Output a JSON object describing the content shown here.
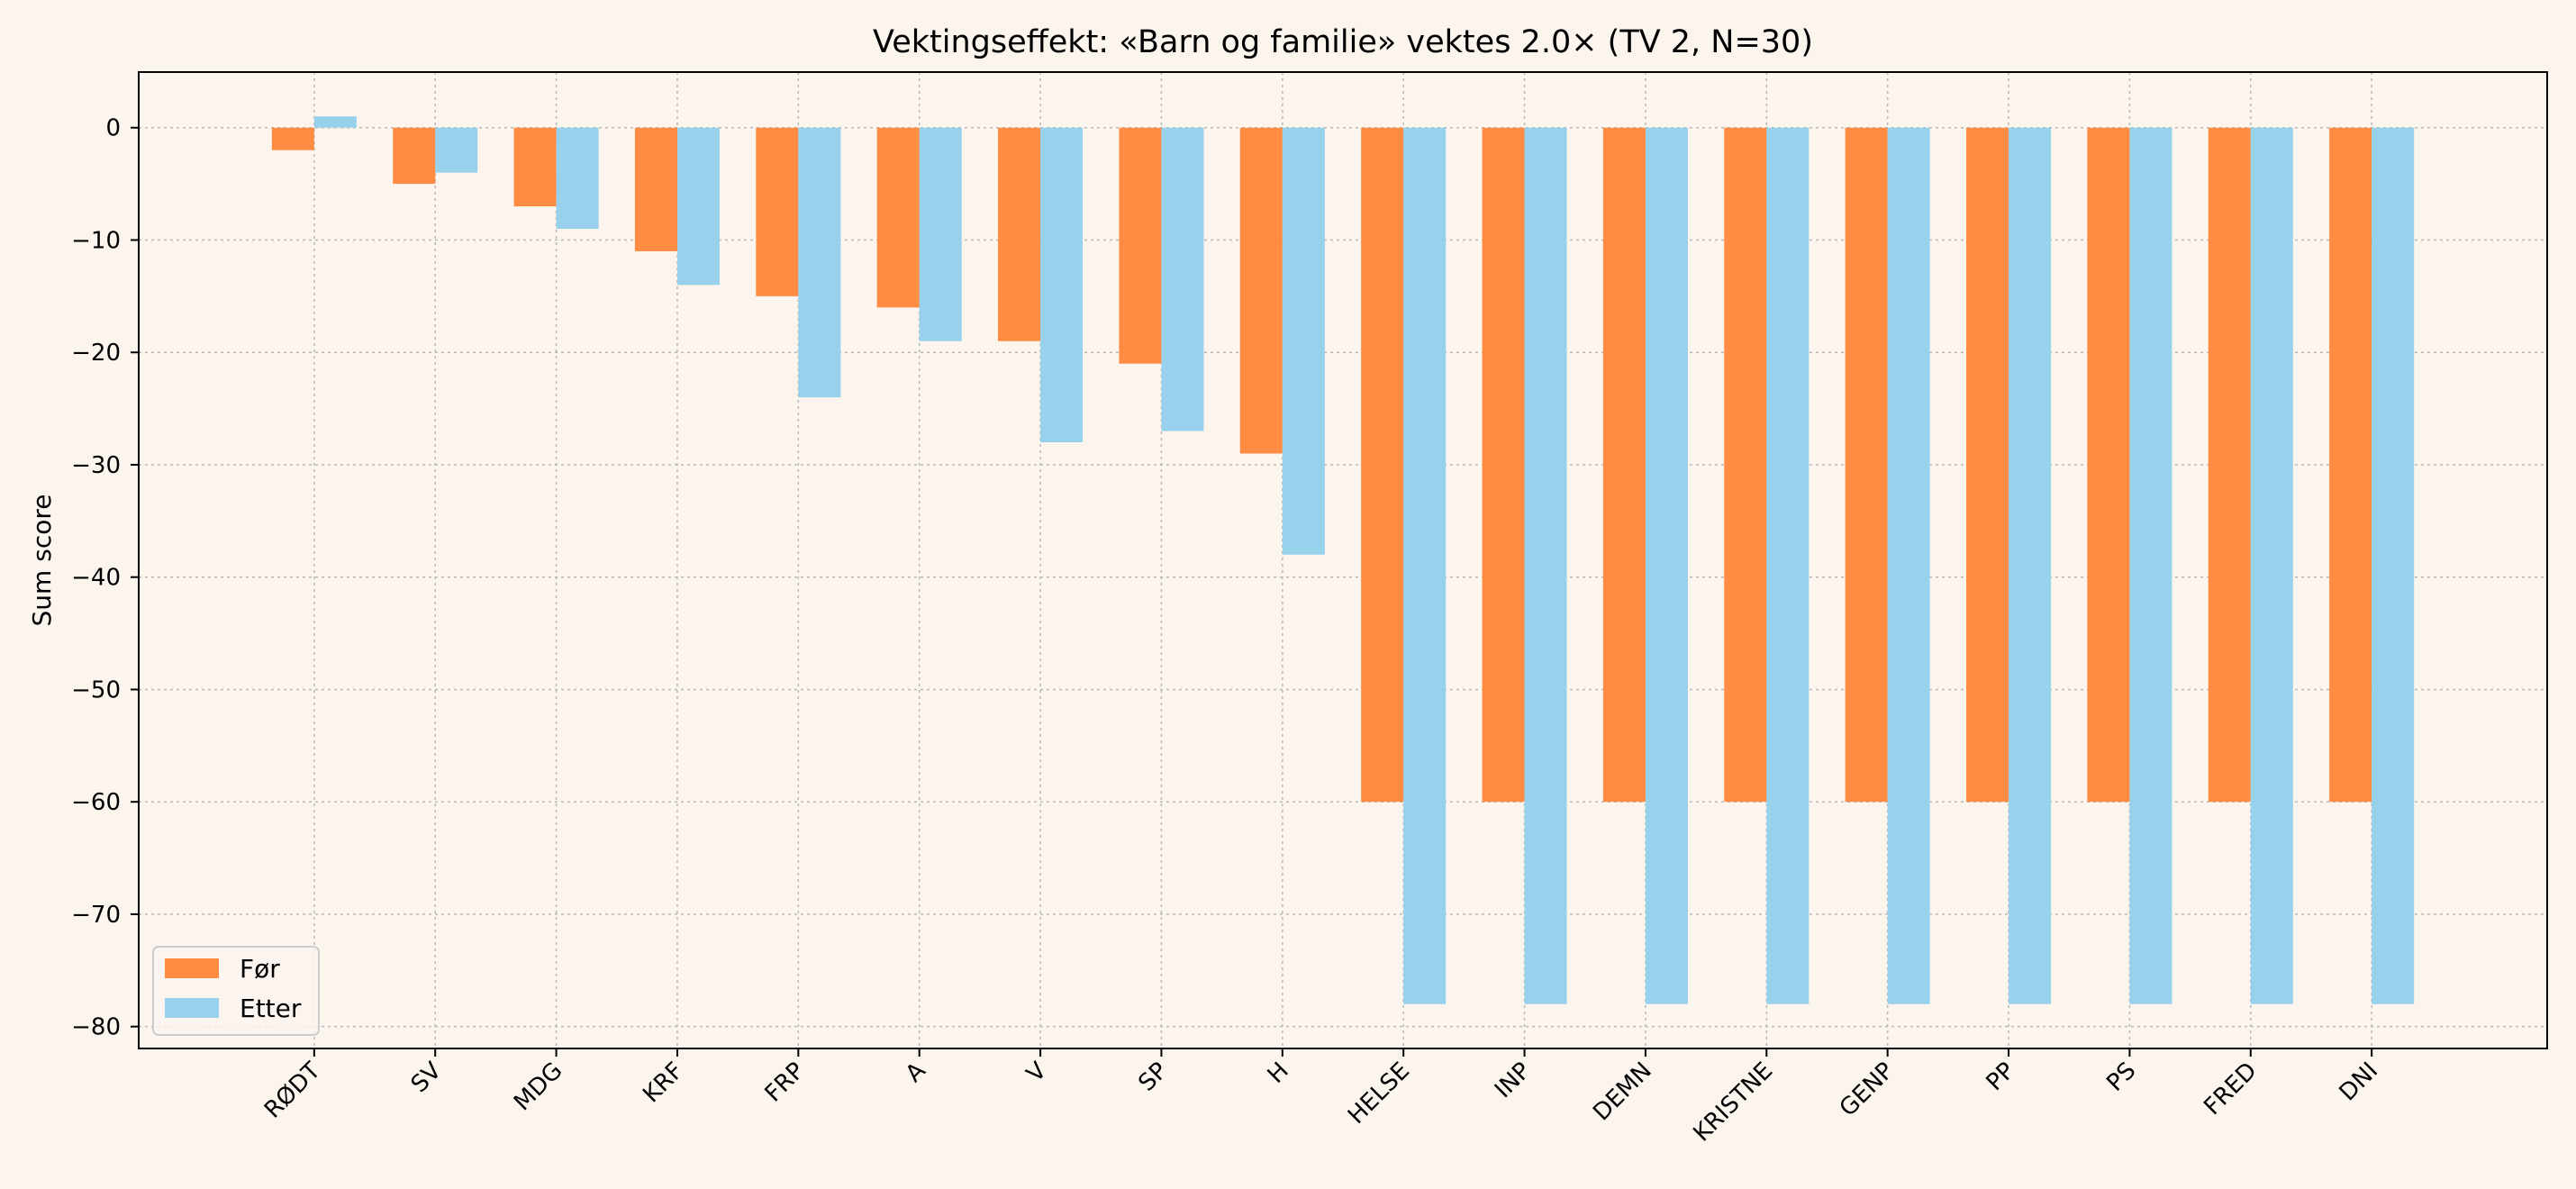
{
  "chart_data": {
    "type": "bar",
    "title": "Vektingseffekt: «Barn og familie» vektes 2.0× (TV 2, N=30)",
    "xlabel": "",
    "ylabel": "Sum score",
    "categories": [
      "RØDT",
      "SV",
      "MDG",
      "KRF",
      "FRP",
      "A",
      "V",
      "SP",
      "H",
      "HELSE",
      "INP",
      "DEMN",
      "KRISTNE",
      "GENP",
      "PP",
      "PS",
      "FRED",
      "DNI"
    ],
    "series": [
      {
        "name": "Før",
        "color": "#ff8c42",
        "values": [
          -2,
          -5,
          -7,
          -11,
          -15,
          -16,
          -19,
          -21,
          -29,
          -60,
          -60,
          -60,
          -60,
          -60,
          -60,
          -60,
          -60,
          -60
        ]
      },
      {
        "name": "Etter",
        "color": "#98d1eb",
        "values": [
          1,
          -4,
          -9,
          -14,
          -24,
          -19,
          -28,
          -27,
          -38,
          -78,
          -78,
          -78,
          -78,
          -78,
          -78,
          -78,
          -78,
          -78
        ]
      }
    ],
    "ylim": [
      -81.95,
      4.95
    ],
    "yticks": [
      0,
      -10,
      -20,
      -30,
      -40,
      -50,
      -60,
      -70,
      -80
    ],
    "grid": true,
    "legend_position": "lower-left",
    "background": "#fcf5ee"
  }
}
